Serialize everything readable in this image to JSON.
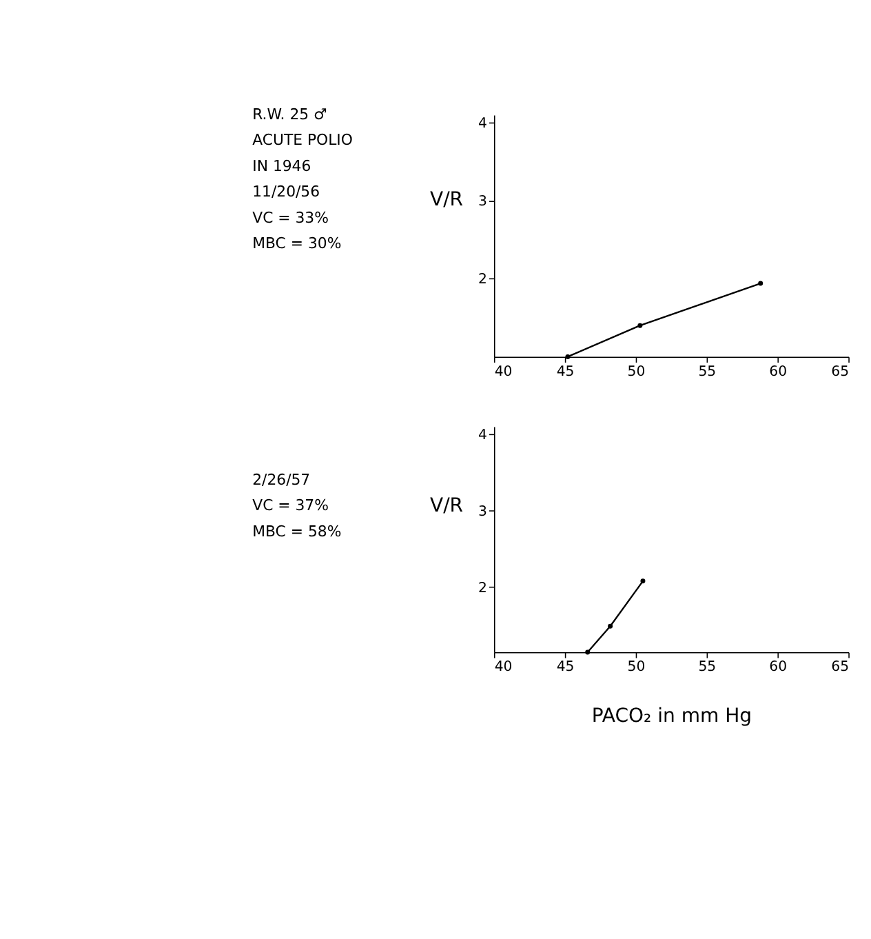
{
  "chart_data": [
    {
      "type": "line",
      "ylabel": "V/R",
      "annotations": [
        "R.W. 25 ♂",
        "ACUTE POLIO",
        "IN 1946",
        "11/20/56",
        "VC = 33%",
        "MBC = 30%"
      ],
      "x": [
        45.2,
        50.3,
        58.8
      ],
      "series": [
        {
          "color": "#000000",
          "values": [
            1.0,
            1.4,
            1.94
          ]
        }
      ],
      "xlim": [
        40,
        65
      ],
      "xticks": [
        40,
        45,
        50,
        55,
        60,
        65
      ],
      "ylim": [
        1.0,
        4.1
      ],
      "yticks": [
        2,
        3,
        4
      ],
      "grid": false,
      "marker": "circle",
      "line_style": "solid"
    },
    {
      "type": "line",
      "ylabel": "V/R",
      "xlabel": "PACO₂ in mm Hg",
      "annotations": [
        "2/26/57",
        "VC = 37%",
        "MBC = 58%"
      ],
      "x": [
        46.6,
        48.2,
        50.5
      ],
      "series": [
        {
          "color": "#000000",
          "values": [
            1.15,
            1.49,
            2.08
          ]
        }
      ],
      "xlim": [
        40,
        65
      ],
      "xticks": [
        40,
        45,
        50,
        55,
        60,
        65
      ],
      "ylim": [
        1.15,
        4.1
      ],
      "yticks": [
        2,
        3,
        4
      ],
      "grid": false,
      "marker": "circle",
      "line_style": "solid"
    }
  ]
}
